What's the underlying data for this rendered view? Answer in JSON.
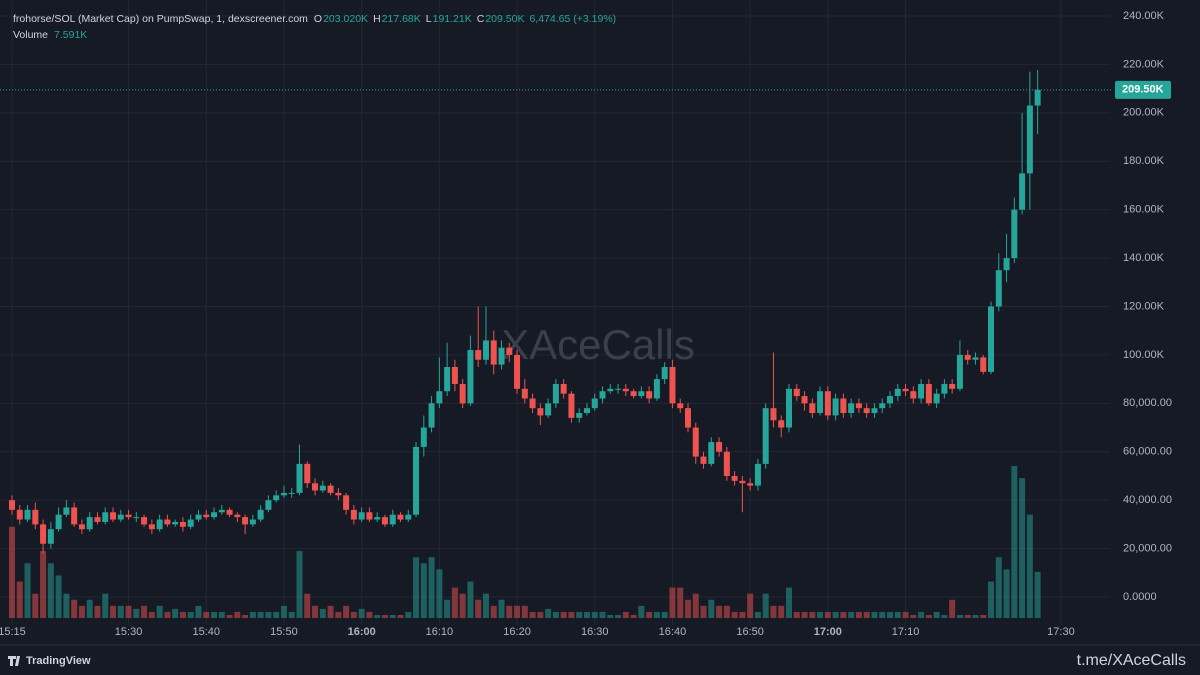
{
  "chart_data": {
    "type": "candlestick",
    "title": "frohorse/SOL (Market Cap) on PumpSwap, 1, dexscreener.com",
    "ohlc_legend": [
      {
        "key": "O",
        "text": "203.020K"
      },
      {
        "key": "H",
        "text": "217.68K"
      },
      {
        "key": "L",
        "text": "191.21K"
      },
      {
        "key": "C",
        "text": "209.50K"
      }
    ],
    "change": "6,474.65 (+3.19%)",
    "volume_legend": {
      "name": "Volume",
      "text": "7.591K"
    },
    "watermark": "XAceCalls",
    "footer_logo": "TradingView",
    "footer_link": "t.me/XAceCalls",
    "up_color": "#26a69a",
    "down_color": "#ef5350",
    "last_price": {
      "value": 209500,
      "label": "209.50K"
    },
    "x": [
      "15:15",
      "15:16",
      "15:17",
      "15:18",
      "15:19",
      "15:20",
      "15:21",
      "15:22",
      "15:23",
      "15:24",
      "15:25",
      "15:26",
      "15:27",
      "15:28",
      "15:29",
      "15:30",
      "15:31",
      "15:32",
      "15:33",
      "15:34",
      "15:35",
      "15:36",
      "15:37",
      "15:38",
      "15:39",
      "15:40",
      "15:41",
      "15:42",
      "15:43",
      "15:44",
      "15:45",
      "15:46",
      "15:47",
      "15:48",
      "15:49",
      "15:50",
      "15:51",
      "15:52",
      "15:53",
      "15:54",
      "15:55",
      "15:56",
      "15:57",
      "15:58",
      "15:59",
      "16:00",
      "16:01",
      "16:02",
      "16:03",
      "16:04",
      "16:05",
      "16:06",
      "16:07",
      "16:08",
      "16:09",
      "16:10",
      "16:11",
      "16:12",
      "16:13",
      "16:14",
      "16:15",
      "16:16",
      "16:17",
      "16:18",
      "16:19",
      "16:20",
      "16:21",
      "16:22",
      "16:23",
      "16:24",
      "16:25",
      "16:26",
      "16:27",
      "16:28",
      "16:29",
      "16:30",
      "16:31",
      "16:32",
      "16:33",
      "16:34",
      "16:35",
      "16:36",
      "16:37",
      "16:38",
      "16:39",
      "16:40",
      "16:41",
      "16:42",
      "16:43",
      "16:44",
      "16:45",
      "16:46",
      "16:47",
      "16:48",
      "16:49",
      "16:50",
      "16:51",
      "16:52",
      "16:53",
      "16:54",
      "16:55",
      "16:56",
      "16:57",
      "16:58",
      "16:59",
      "17:00",
      "17:01",
      "17:02",
      "17:03",
      "17:04",
      "17:05",
      "17:06",
      "17:07",
      "17:08",
      "17:09",
      "17:10",
      "17:11",
      "17:12",
      "17:13",
      "17:14",
      "17:15",
      "17:16",
      "17:17",
      "17:18",
      "17:19",
      "17:20",
      "17:21",
      "17:22",
      "17:23",
      "17:24",
      "17:25",
      "17:26",
      "17:27"
    ],
    "open": [
      40000,
      36000,
      32000,
      36000,
      30000,
      22000,
      28000,
      34000,
      37000,
      30000,
      28000,
      33000,
      31000,
      35000,
      32000,
      34000,
      33000,
      33000,
      30000,
      28000,
      32000,
      30000,
      31000,
      29000,
      32000,
      34000,
      33000,
      35000,
      36000,
      34000,
      33000,
      30000,
      32000,
      36000,
      40000,
      42000,
      43000,
      43000,
      55000,
      47000,
      44000,
      46000,
      43000,
      42000,
      36000,
      32000,
      35000,
      32000,
      33000,
      30000,
      34000,
      32000,
      34000,
      62000,
      70000,
      80000,
      85000,
      95000,
      88000,
      80000,
      102000,
      98000,
      106000,
      96000,
      103000,
      100000,
      86000,
      82000,
      78000,
      75000,
      80000,
      88000,
      84000,
      74000,
      76000,
      78000,
      82000,
      85000,
      86000,
      86000,
      85000,
      83000,
      85000,
      82000,
      90000,
      95000,
      80000,
      78000,
      70000,
      58000,
      55000,
      64000,
      60000,
      50000,
      48000,
      47000,
      46000,
      55000,
      78000,
      73000,
      70000,
      86000,
      83000,
      80000,
      76000,
      85000,
      75000,
      82000,
      76000,
      80000,
      78000,
      76000,
      78000,
      80000,
      83000,
      86000,
      85000,
      82000,
      88000,
      80000,
      84000,
      88000,
      86000,
      100000,
      98000,
      99000,
      93000,
      120000,
      135000,
      140000,
      160000,
      175000,
      203020
    ],
    "high": [
      42000,
      38000,
      38000,
      39000,
      32000,
      31000,
      37000,
      40000,
      39000,
      32000,
      35000,
      35000,
      37000,
      37000,
      36000,
      36000,
      35000,
      34000,
      32000,
      34000,
      34000,
      32000,
      33000,
      34000,
      36000,
      36000,
      37000,
      38000,
      37000,
      35000,
      34000,
      34000,
      38000,
      42000,
      44000,
      46000,
      45000,
      63000,
      56000,
      49000,
      48000,
      47000,
      45000,
      43000,
      38000,
      37000,
      37000,
      35000,
      34000,
      36000,
      35000,
      36000,
      64000,
      75000,
      83000,
      99000,
      105000,
      98000,
      90000,
      108000,
      120000,
      120000,
      110000,
      106000,
      105000,
      102000,
      90000,
      84000,
      80000,
      82000,
      90000,
      90000,
      85000,
      78000,
      80000,
      84000,
      87000,
      88000,
      88000,
      88000,
      86000,
      87000,
      87000,
      92000,
      97000,
      98000,
      82000,
      80000,
      72000,
      60000,
      66000,
      66000,
      62000,
      52000,
      50000,
      49000,
      57000,
      80000,
      101000,
      75000,
      88000,
      88000,
      85000,
      82000,
      87000,
      87000,
      84000,
      84000,
      82000,
      82000,
      80000,
      80000,
      82000,
      85000,
      88000,
      88000,
      87000,
      90000,
      90000,
      86000,
      90000,
      90000,
      106000,
      102000,
      101000,
      100000,
      122000,
      142000,
      150000,
      165000,
      200000,
      217000,
      217680
    ],
    "low": [
      34000,
      30000,
      31000,
      28000,
      18000,
      20000,
      27000,
      33000,
      29000,
      26000,
      27000,
      30000,
      30000,
      31000,
      31000,
      32000,
      31000,
      29000,
      26000,
      27000,
      29000,
      29000,
      27000,
      28000,
      31000,
      32000,
      32000,
      34000,
      33000,
      31000,
      26000,
      29000,
      31000,
      35000,
      39000,
      41000,
      41000,
      42000,
      45000,
      42000,
      43000,
      42000,
      40000,
      34000,
      30000,
      31000,
      31000,
      31000,
      29000,
      29000,
      31000,
      31000,
      33000,
      58000,
      68000,
      78000,
      83000,
      85000,
      78000,
      79000,
      95000,
      96000,
      92000,
      94000,
      97000,
      84000,
      80000,
      76000,
      71000,
      74000,
      78000,
      82000,
      72000,
      72000,
      75000,
      77000,
      80000,
      84000,
      84000,
      83000,
      82000,
      82000,
      80000,
      81000,
      88000,
      78000,
      76000,
      68000,
      55000,
      53000,
      54000,
      58000,
      48000,
      46000,
      35000,
      44000,
      44000,
      53000,
      70000,
      66000,
      68000,
      81000,
      77000,
      74000,
      75000,
      73000,
      73000,
      74000,
      74000,
      76000,
      74000,
      74000,
      76000,
      78000,
      81000,
      83000,
      80000,
      80000,
      79000,
      78000,
      82000,
      84000,
      85000,
      96000,
      96000,
      92000,
      92000,
      118000,
      130000,
      138000,
      158000,
      160000,
      191210
    ],
    "close": [
      36000,
      32000,
      36000,
      30000,
      22000,
      28000,
      34000,
      37000,
      30000,
      28000,
      33000,
      31000,
      35000,
      32000,
      34000,
      33000,
      33000,
      30000,
      28000,
      32000,
      30000,
      31000,
      29000,
      32000,
      34000,
      33000,
      35000,
      36000,
      34000,
      33000,
      30000,
      32000,
      36000,
      40000,
      42000,
      43000,
      43000,
      55000,
      47000,
      44000,
      46000,
      43000,
      42000,
      36000,
      32000,
      35000,
      32000,
      33000,
      30000,
      34000,
      32000,
      34000,
      62000,
      70000,
      80000,
      85000,
      95000,
      88000,
      80000,
      102000,
      98000,
      106000,
      96000,
      103000,
      100000,
      86000,
      82000,
      78000,
      75000,
      80000,
      88000,
      84000,
      74000,
      76000,
      78000,
      82000,
      85000,
      86000,
      86000,
      85000,
      83000,
      85000,
      82000,
      90000,
      95000,
      80000,
      78000,
      70000,
      58000,
      55000,
      64000,
      60000,
      50000,
      48000,
      47000,
      46000,
      55000,
      78000,
      73000,
      70000,
      86000,
      83000,
      80000,
      76000,
      85000,
      75000,
      82000,
      76000,
      80000,
      78000,
      76000,
      78000,
      80000,
      83000,
      86000,
      85000,
      82000,
      88000,
      80000,
      84000,
      88000,
      86000,
      100000,
      98000,
      99000,
      93000,
      120000,
      135000,
      140000,
      160000,
      175000,
      203020,
      209500
    ],
    "volume": [
      15000,
      6000,
      9000,
      4000,
      11000,
      9000,
      7000,
      4000,
      3000,
      2000,
      3000,
      2000,
      4000,
      2000,
      2000,
      2000,
      1500,
      2000,
      1000,
      2000,
      1000,
      1500,
      1000,
      1000,
      2000,
      1000,
      1000,
      1000,
      500,
      1000,
      500,
      1000,
      1000,
      1000,
      1000,
      2000,
      1000,
      11000,
      4000,
      2000,
      1500,
      2000,
      1000,
      2000,
      1000,
      1500,
      1000,
      500,
      500,
      500,
      500,
      1000,
      10000,
      9000,
      10000,
      8000,
      3000,
      5000,
      4000,
      6000,
      3000,
      4000,
      2000,
      3000,
      2000,
      2000,
      2000,
      1000,
      1000,
      1500,
      1000,
      1000,
      1000,
      1000,
      1000,
      1000,
      1000,
      500,
      500,
      1000,
      500,
      2000,
      1000,
      1000,
      1000,
      5000,
      5000,
      3000,
      4000,
      2000,
      3000,
      2000,
      2000,
      1000,
      1000,
      4000,
      1000,
      4000,
      2000,
      2000,
      5000,
      1000,
      1000,
      1000,
      1000,
      1000,
      1000,
      1000,
      1000,
      1000,
      1000,
      1000,
      1000,
      1000,
      1000,
      1000,
      500,
      1000,
      500,
      1000,
      500,
      3000,
      500,
      500,
      500,
      500,
      6000,
      10000,
      8000,
      25000,
      23000,
      17000,
      7591
    ],
    "ylim": [
      0,
      240000
    ],
    "yticks": [
      {
        "value": 0,
        "label": "0.0000"
      },
      {
        "value": 20000,
        "label": "20,000.00"
      },
      {
        "value": 40000,
        "label": "40,000.00"
      },
      {
        "value": 60000,
        "label": "60,000.00"
      },
      {
        "value": 80000,
        "label": "80,000.00"
      },
      {
        "value": 100000,
        "label": "100.00K"
      },
      {
        "value": 120000,
        "label": "120.00K"
      },
      {
        "value": 140000,
        "label": "140.00K"
      },
      {
        "value": 160000,
        "label": "160.00K"
      },
      {
        "value": 180000,
        "label": "180.00K"
      },
      {
        "value": 200000,
        "label": "200.00K"
      },
      {
        "value": 220000,
        "label": "220.00K"
      },
      {
        "value": 240000,
        "label": "240.00K"
      }
    ],
    "xticks": [
      "15:15",
      "15:30",
      "15:40",
      "15:50",
      "16:00",
      "16:10",
      "16:20",
      "16:30",
      "16:40",
      "16:50",
      "17:00",
      "17:10",
      "17:30"
    ],
    "grid": true
  }
}
